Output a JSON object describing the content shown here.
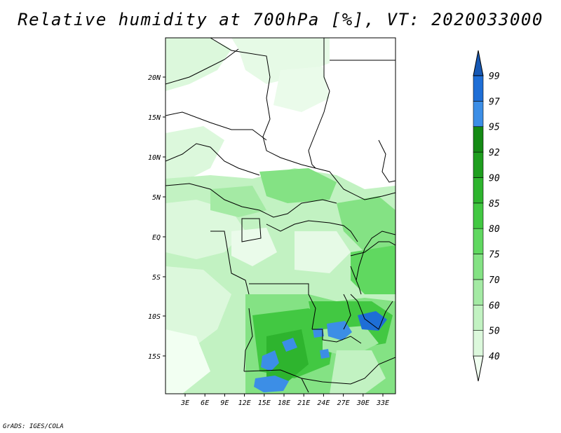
{
  "title": "Relative humidity at 700hPa [%], VT: 2020033000",
  "credit": "GrADS: IGES/COLA",
  "map": {
    "lat_ticks": [
      "20N",
      "15N",
      "10N",
      "5N",
      "EQ",
      "5S",
      "10S",
      "15S"
    ],
    "lon_ticks": [
      "3E",
      "6E",
      "9E",
      "12E",
      "15E",
      "18E",
      "21E",
      "24E",
      "27E",
      "30E",
      "33E"
    ]
  },
  "colorbar": {
    "levels": [
      "40",
      "50",
      "60",
      "70",
      "75",
      "80",
      "85",
      "90",
      "92",
      "95",
      "97",
      "99"
    ],
    "colors": [
      "#f0fff0",
      "#dcf8dc",
      "#c2f2c2",
      "#a4eaa4",
      "#84e284",
      "#60d860",
      "#42c842",
      "#2eb42e",
      "#1e9e1e",
      "#148a14",
      "#3c8ee6",
      "#1e6ed6",
      "#1658b4"
    ]
  }
}
